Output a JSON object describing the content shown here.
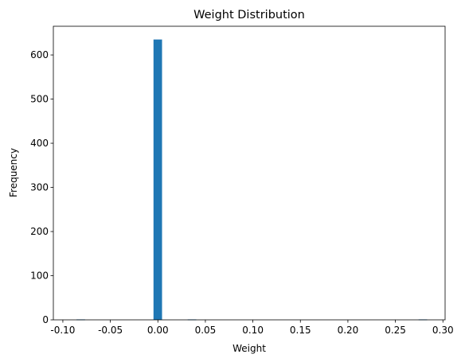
{
  "chart_data": {
    "type": "bar",
    "title": "Weight Distribution",
    "xlabel": "Weight",
    "ylabel": "Frequency",
    "xlim": [
      -0.1,
      0.3
    ],
    "ylim": [
      0,
      665
    ],
    "xticks": [
      "-0.10",
      "-0.05",
      "0.00",
      "0.05",
      "0.10",
      "0.15",
      "0.20",
      "0.25",
      "0.30"
    ],
    "yticks": [
      "0",
      "100",
      "200",
      "300",
      "400",
      "500",
      "600"
    ],
    "grid": false,
    "bins": [
      {
        "x0": -0.0856,
        "x1": -0.0766,
        "count": 1
      },
      {
        "x0": -0.0046,
        "x1": 0.0044,
        "count": 635
      },
      {
        "x0": 0.0314,
        "x1": 0.0404,
        "count": 1
      },
      {
        "x0": 0.2744,
        "x1": 0.2834,
        "count": 1
      }
    ],
    "bar_color": "#1f77b4"
  }
}
